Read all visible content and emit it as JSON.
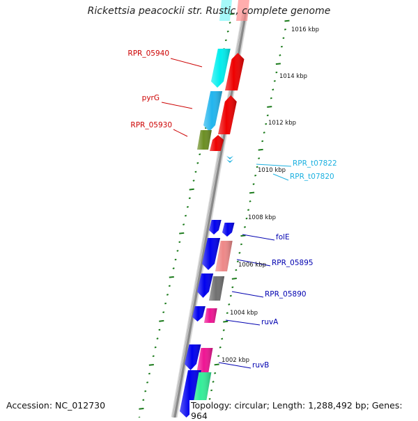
{
  "title": "Rickettsia peacockii str. Rustic, complete genome",
  "accession": "Accession: NC_012730",
  "stats": "Topology: circular; Length: 1,288,492 bp; Genes: 964",
  "colors": {
    "tick": "#1a7a1a",
    "backbone": "#8a8a8a",
    "label_red": "#cc0000",
    "label_cyan": "#1ab0e0",
    "label_blue": "#0000b0",
    "tick_text": "#111111"
  },
  "scale_ticks": [
    "1016 kbp",
    "1014 kbp",
    "1012 kbp",
    "1010 kbp",
    "1008 kbp",
    "1006 kbp",
    "1004 kbp",
    "1002 kbp"
  ],
  "genes": [
    {
      "label": "RPR_05940",
      "strand": "minus",
      "color": "#00eeee"
    },
    {
      "label": "",
      "strand": "plus",
      "color": "#ee0000"
    },
    {
      "label": "pyrG",
      "strand": "minus",
      "color": "#22b5ee"
    },
    {
      "label": "",
      "strand": "plus",
      "color": "#ee0000"
    },
    {
      "label": "RPR_05930",
      "strand": "minus",
      "color": "#6b8e23"
    },
    {
      "label": "",
      "strand": "plus",
      "color": "#ee0000"
    },
    {
      "label": "RPR_t07822",
      "strand": "plus",
      "color": "#1ab0e0"
    },
    {
      "label": "RPR_t07820",
      "strand": "plus",
      "color": "#1ab0e0"
    },
    {
      "label": "folE",
      "strand": "plus",
      "color": "#0000ee"
    },
    {
      "label": "",
      "strand": "minus",
      "color": "#0000ee"
    },
    {
      "label": "RPR_05895",
      "strand": "plus",
      "color": "#ee8888"
    },
    {
      "label": "",
      "strand": "minus",
      "color": "#0000ee"
    },
    {
      "label": "RPR_05890",
      "strand": "plus",
      "color": "#707070"
    },
    {
      "label": "",
      "strand": "minus",
      "color": "#0000ee"
    },
    {
      "label": "",
      "strand": "minus",
      "color": "#0000ee"
    },
    {
      "label": "ruvA",
      "strand": "plus",
      "color": "#ee1493"
    },
    {
      "label": "",
      "strand": "minus",
      "color": "#0000ee"
    },
    {
      "label": "ruvB",
      "strand": "plus",
      "color": "#ee1493"
    },
    {
      "label": "",
      "strand": "minus",
      "color": "#0000ee"
    },
    {
      "label": "",
      "strand": "plus",
      "color": "#33ee99"
    }
  ]
}
